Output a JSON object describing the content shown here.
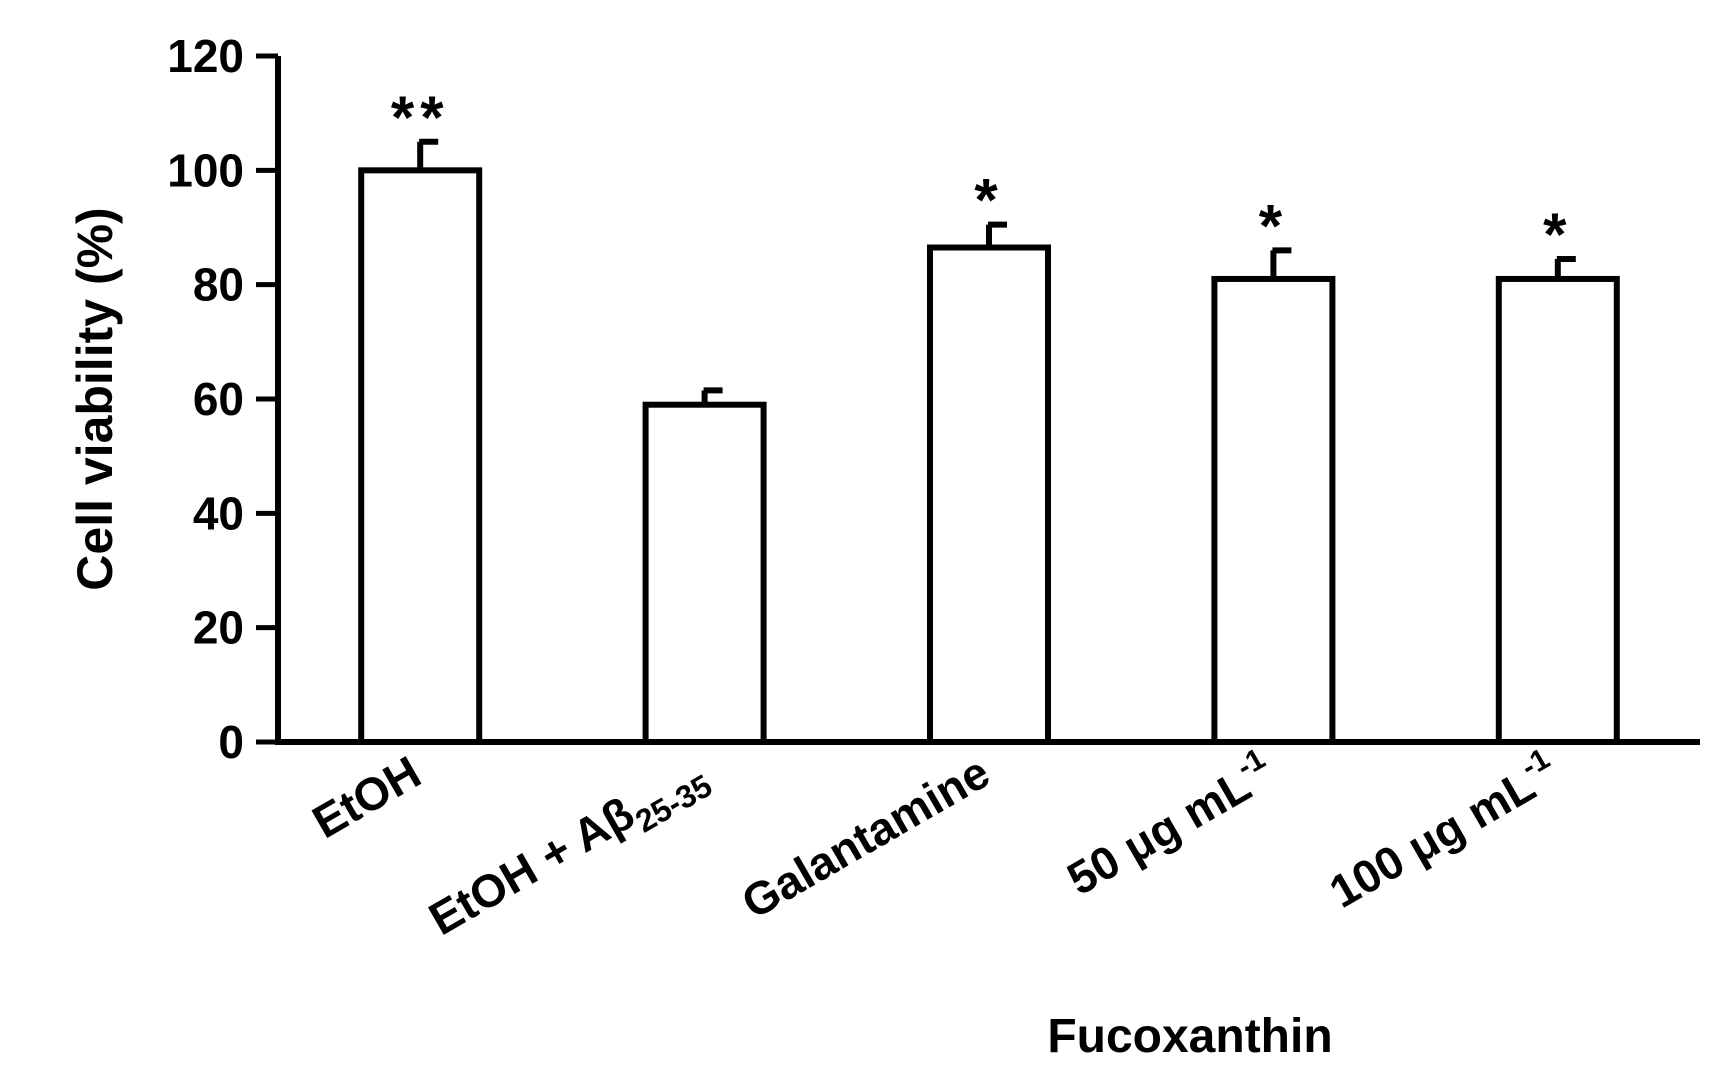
{
  "chart_data": {
    "type": "bar",
    "title": "",
    "ylabel": "Cell viability (%)",
    "xlabel": "Fucoxanthin",
    "ylim": [
      0,
      120
    ],
    "yticks": [
      0,
      20,
      40,
      60,
      80,
      100,
      120
    ],
    "categories": [
      {
        "main": "EtOH",
        "sub": "",
        "sup": ""
      },
      {
        "main": "EtOH + Aβ",
        "sub": "25-35",
        "sup": ""
      },
      {
        "main": "Galantamine",
        "sub": "",
        "sup": ""
      },
      {
        "main": "50 μg mL",
        "sub": "",
        "sup": "-1"
      },
      {
        "main": "100 μg mL",
        "sub": "",
        "sup": "-1"
      }
    ],
    "values": [
      100,
      59,
      86.5,
      81,
      81
    ],
    "errors": [
      5,
      2.5,
      4,
      5,
      3.5
    ],
    "significance": [
      "**",
      "",
      "*",
      "*",
      "*"
    ],
    "grid": false,
    "bar_fill": "#ffffff",
    "bar_stroke": "#000000"
  }
}
